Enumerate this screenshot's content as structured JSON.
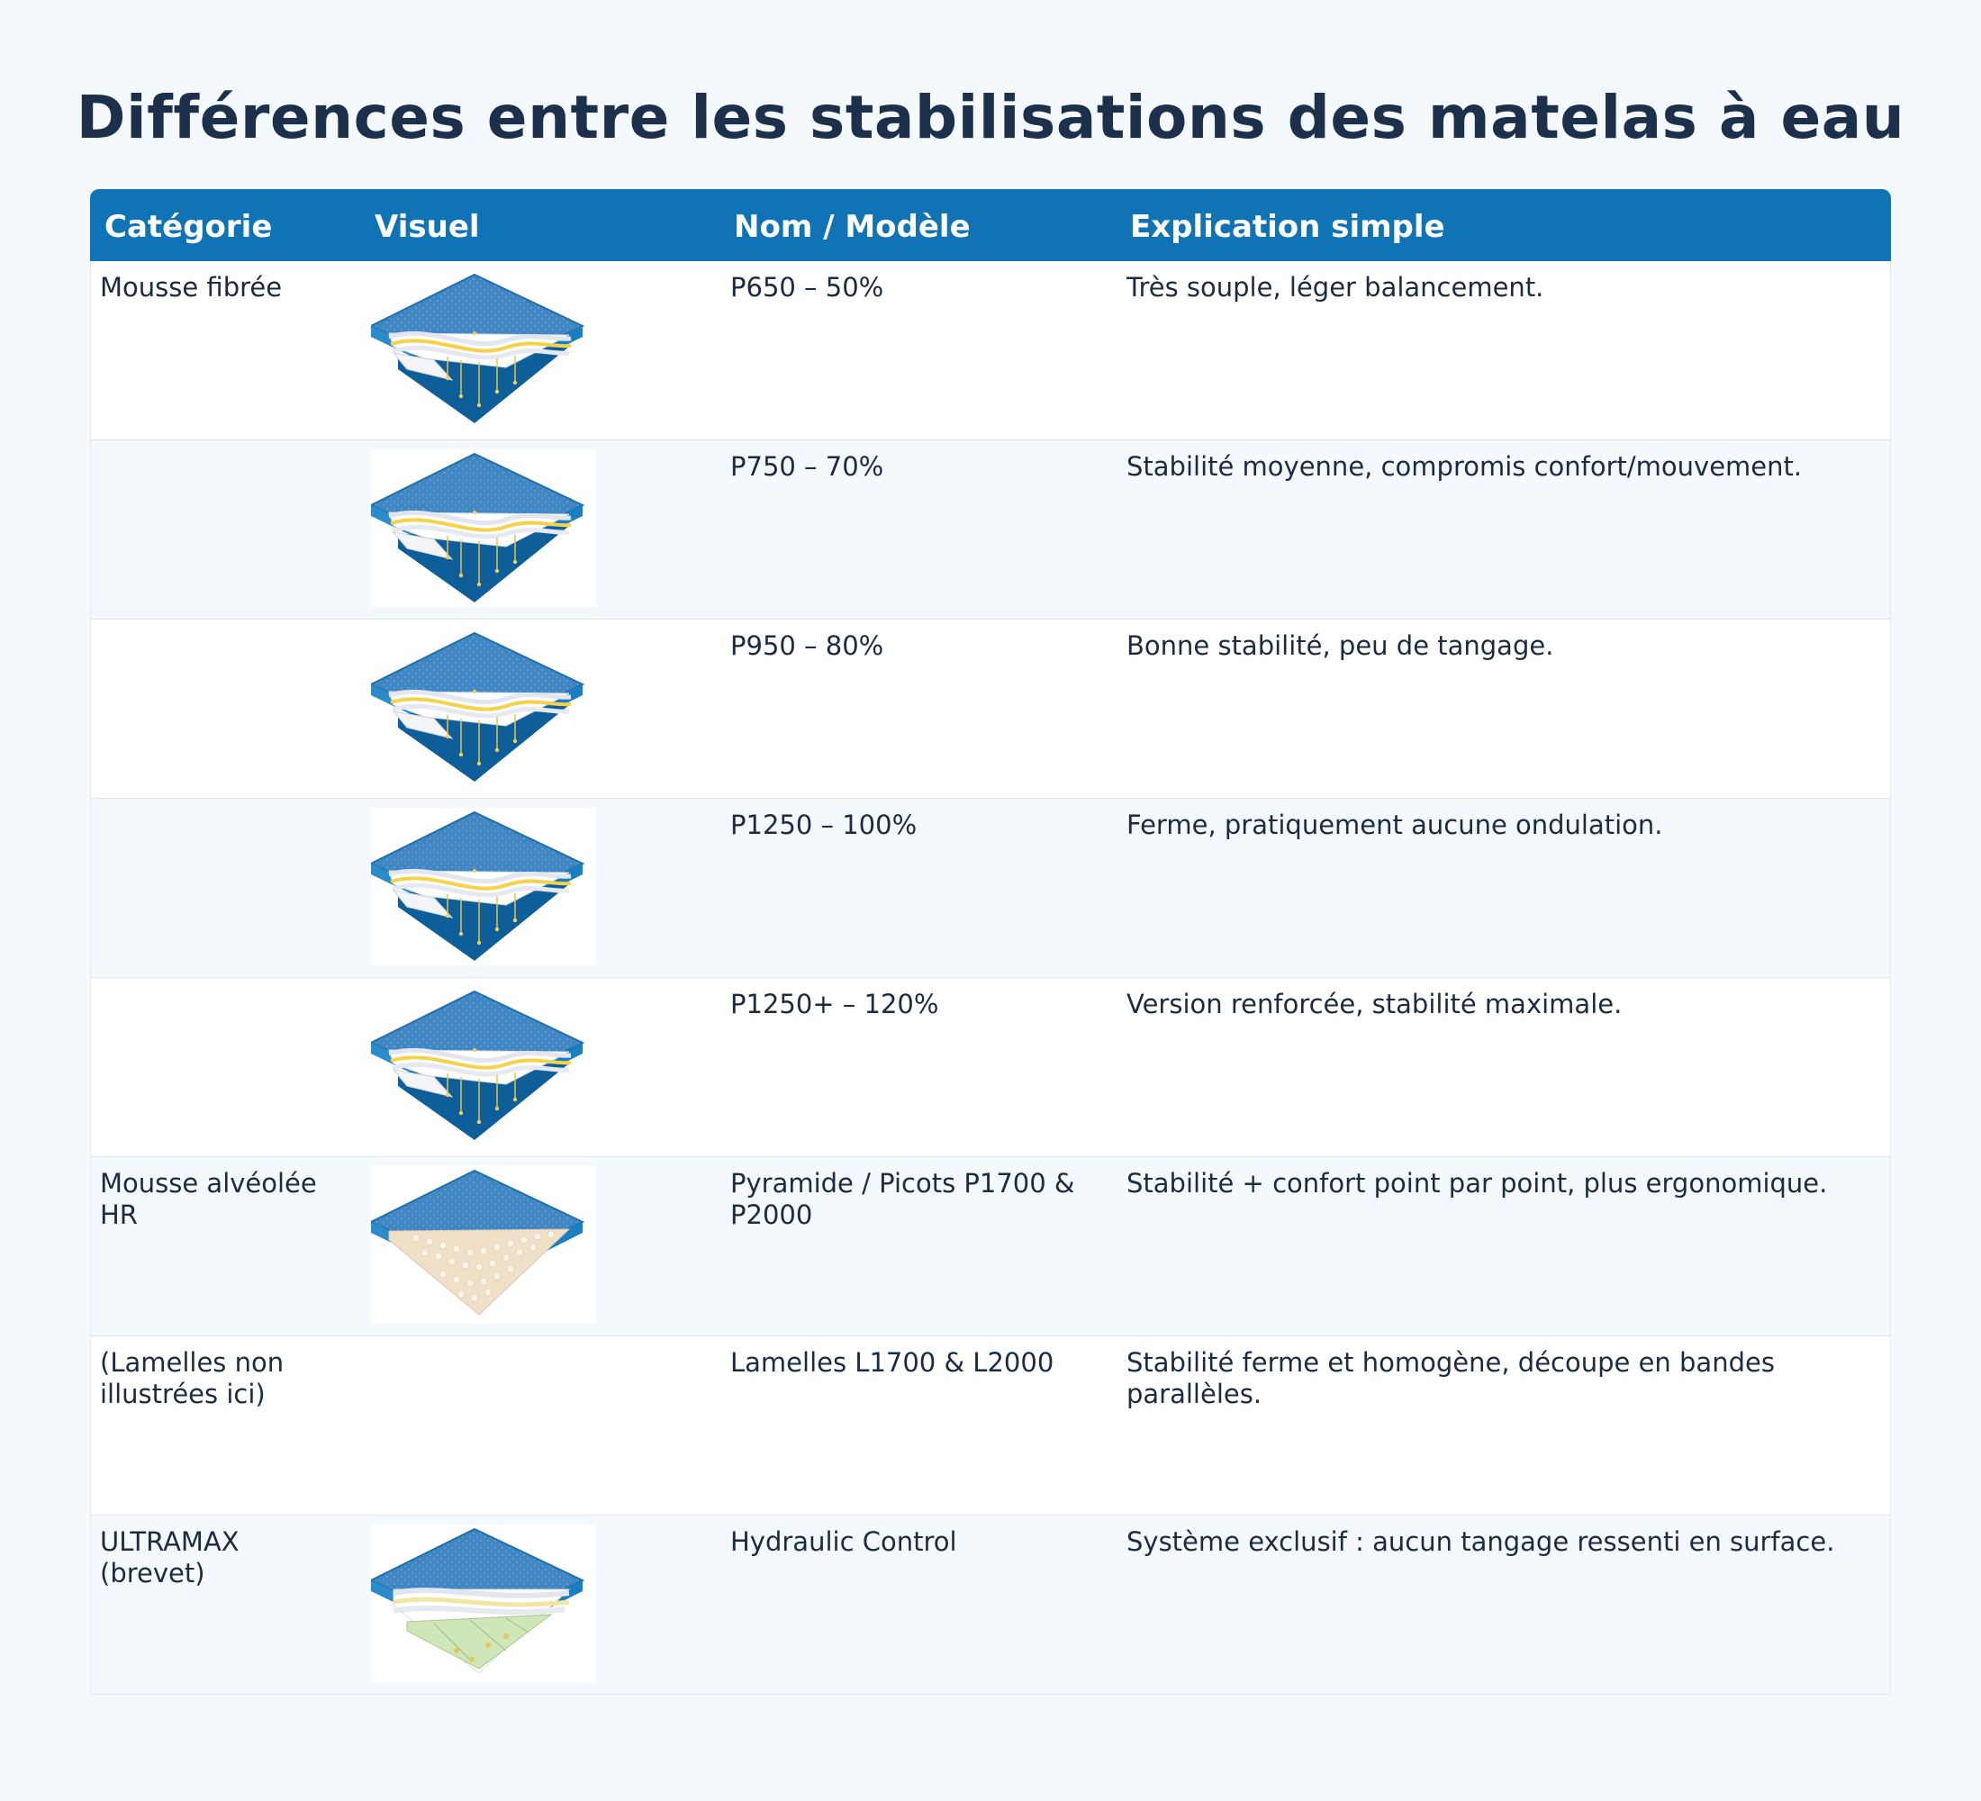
{
  "title": "Différences entre les stabilisations des matelas à eau",
  "headers": {
    "category": "Catégorie",
    "visual": "Visuel",
    "model": "Nom / Modèle",
    "explanation": "Explication simple"
  },
  "rows": [
    {
      "category": "Mousse fibrée",
      "model": "P650 – 50%",
      "explanation": "Très souple, léger balancement.",
      "image": "mattress-fiber-layers-icon"
    },
    {
      "category": "",
      "model": "P750 – 70%",
      "explanation": "Stabilité moyenne, compromis confort/mouvement.",
      "image": "mattress-fiber-layers-icon"
    },
    {
      "category": "",
      "model": "P950 – 80%",
      "explanation": "Bonne stabilité, peu de tangage.",
      "image": "mattress-fiber-layers-icon"
    },
    {
      "category": "",
      "model": "P1250 – 100%",
      "explanation": "Ferme, pratiquement aucune ondulation.",
      "image": "mattress-fiber-layers-icon"
    },
    {
      "category": "",
      "model": "P1250+ – 120%",
      "explanation": "Version renforcée, stabilité maximale.",
      "image": "mattress-fiber-layers-icon"
    },
    {
      "category": "Mousse alvéolée HR",
      "model": "Pyramide / Picots P1700 & P2000",
      "explanation": "Stabilité + confort point par point, plus ergonomique.",
      "image": "mattress-pyramid-foam-icon"
    },
    {
      "category": "(Lamelles non illustrées ici)",
      "model": "Lamelles L1700 & L2000",
      "explanation": "Stabilité ferme et homogène, découpe en bandes parallèles.",
      "image": ""
    },
    {
      "category": "ULTRAMAX (brevet)",
      "model": "Hydraulic Control",
      "explanation": "Système exclusif : aucun tangage ressenti en surface.",
      "image": "mattress-hydraulic-icon"
    }
  ],
  "colors": {
    "header": "#0f73b5",
    "title": "#1c2f4b",
    "water": "#1573ad",
    "foam": "#f0e0c8",
    "fiber_accent": "#f5d24a"
  }
}
